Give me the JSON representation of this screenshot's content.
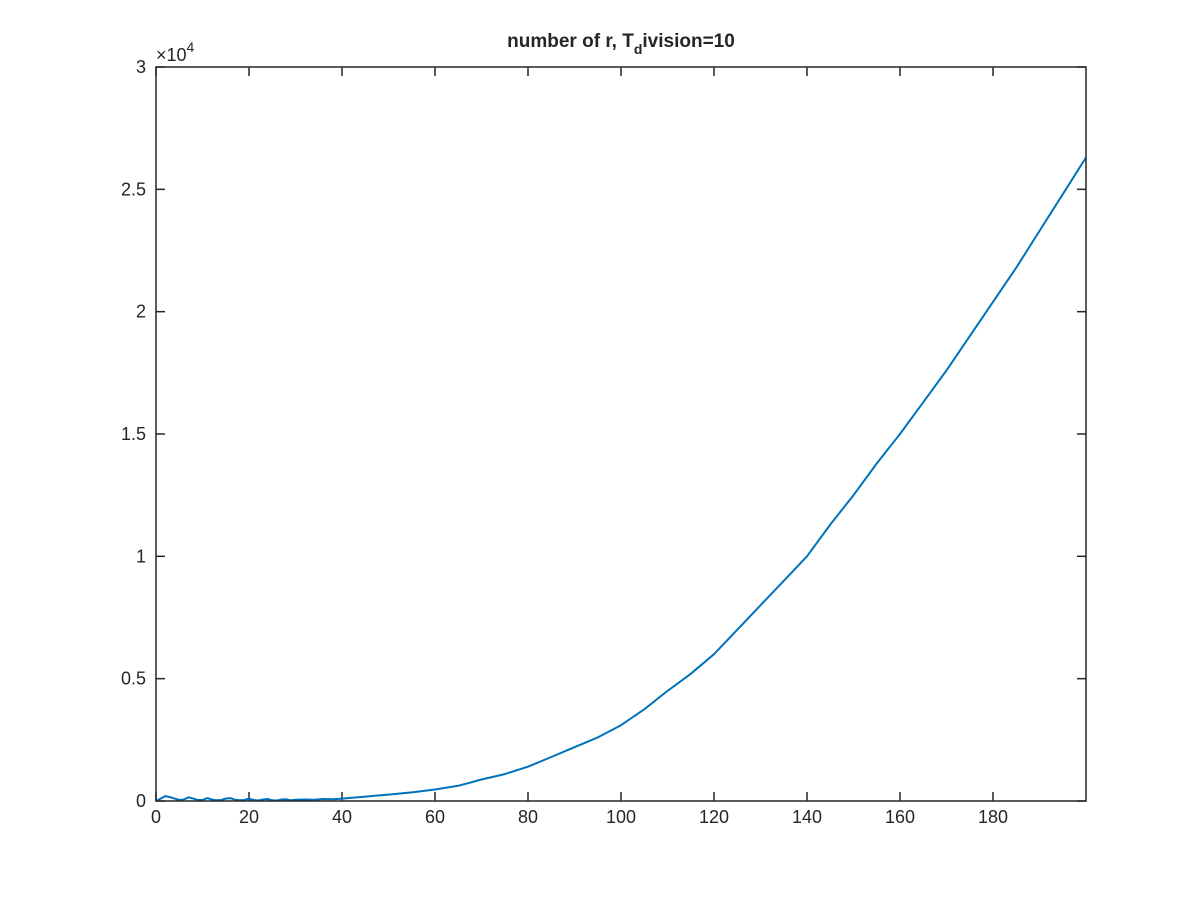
{
  "chart_data": {
    "type": "line",
    "title": {
      "main": "number of r, T",
      "subscript": "d",
      "rest": "ivision=10"
    },
    "xlabel": "",
    "ylabel": "",
    "xlim": [
      0,
      200
    ],
    "ylim": [
      0,
      30000
    ],
    "x_ticks": [
      0,
      20,
      40,
      60,
      80,
      100,
      120,
      140,
      160,
      180
    ],
    "x_tick_labels": [
      "0",
      "20",
      "40",
      "60",
      "80",
      "100",
      "120",
      "140",
      "160",
      "180"
    ],
    "y_ticks": [
      0,
      5000,
      10000,
      15000,
      20000,
      25000,
      30000
    ],
    "y_tick_labels": [
      "0",
      "0.5",
      "1",
      "1.5",
      "2",
      "2.5",
      "3"
    ],
    "y_exponent": {
      "base": "×10",
      "power": "4"
    },
    "grid": false,
    "line_color": "#0072BD",
    "series": [
      {
        "x": [
          0,
          1,
          2,
          3,
          4,
          5,
          6,
          7,
          8,
          9,
          10,
          11,
          12,
          13,
          14,
          15,
          16,
          17,
          18,
          19,
          20,
          21,
          22,
          23,
          24,
          25,
          26,
          27,
          28,
          29,
          30,
          32,
          34,
          36,
          38,
          40,
          45,
          50,
          55,
          60,
          65,
          70,
          75,
          80,
          85,
          90,
          95,
          100,
          105,
          110,
          115,
          120,
          125,
          130,
          135,
          140,
          145,
          150,
          155,
          160,
          165,
          170,
          175,
          180,
          185,
          190,
          195,
          200
        ],
        "values": [
          0,
          100,
          200,
          160,
          100,
          40,
          60,
          150,
          100,
          40,
          40,
          120,
          60,
          30,
          40,
          100,
          120,
          50,
          30,
          40,
          100,
          40,
          20,
          60,
          80,
          30,
          20,
          60,
          70,
          30,
          50,
          60,
          50,
          80,
          70,
          100,
          180,
          260,
          350,
          470,
          620,
          880,
          1100,
          1400,
          1800,
          2200,
          2600,
          3100,
          3750,
          4500,
          5200,
          6000,
          7000,
          8000,
          9000,
          10000,
          11300,
          12500,
          13800,
          15000,
          16300,
          17600,
          19000,
          20400,
          21800,
          23300,
          24800,
          26300
        ]
      }
    ]
  }
}
